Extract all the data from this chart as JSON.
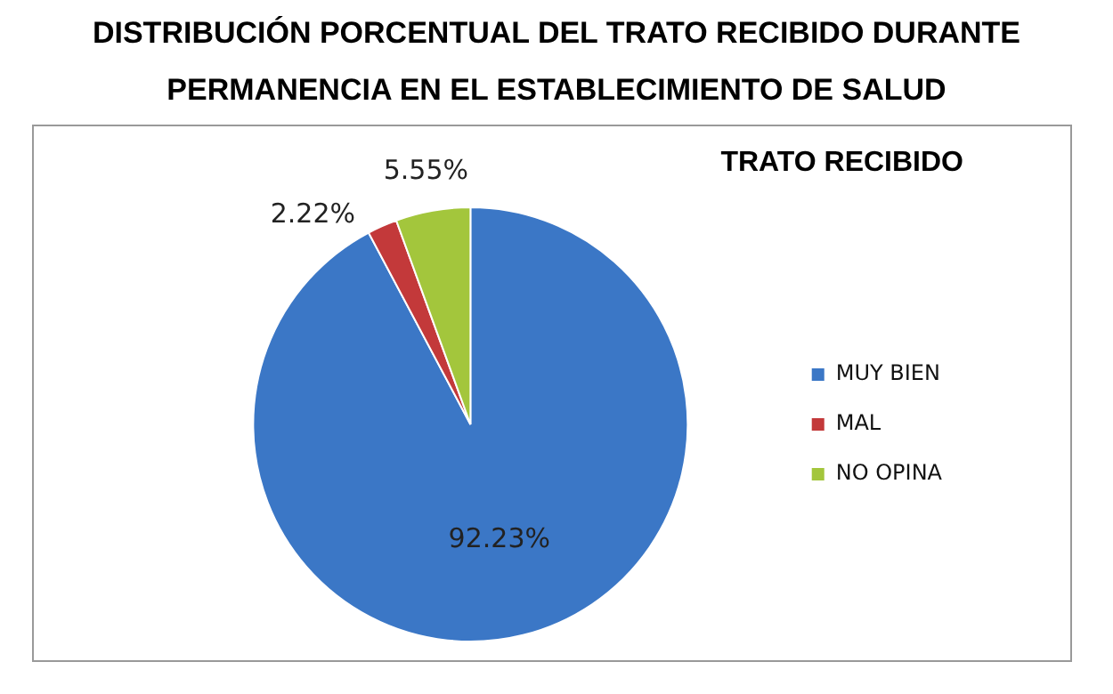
{
  "chart_data": {
    "type": "pie",
    "title": "DISTRIBUCIÓN PORCENTUAL DEL TRATO RECIBIDO DURANTE",
    "subtitle": "PERMANENCIA EN EL ESTABLECIMIENTO DE SALUD",
    "legend_title": "TRATO RECIBIDO",
    "categories": [
      "MUY BIEN",
      "MAL",
      "NO OPINA"
    ],
    "values": [
      92.23,
      2.22,
      5.55
    ],
    "colors": [
      "#3b77c6",
      "#c3393a",
      "#a3c63c"
    ],
    "value_labels": [
      "92.23%",
      "2.22%",
      "5.55%"
    ],
    "legend": "right"
  }
}
